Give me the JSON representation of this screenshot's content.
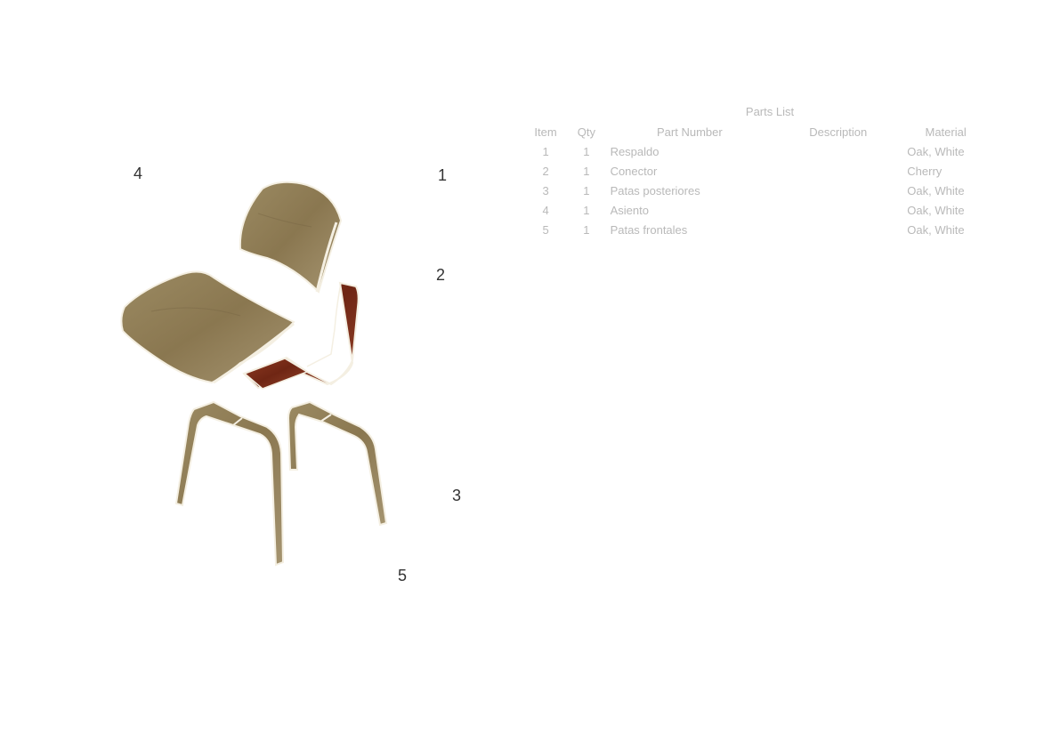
{
  "callouts": [
    {
      "id": "c1",
      "label": "1"
    },
    {
      "id": "c2",
      "label": "2"
    },
    {
      "id": "c3",
      "label": "3"
    },
    {
      "id": "c4",
      "label": "4"
    },
    {
      "id": "c5",
      "label": "5"
    }
  ],
  "parts_list": {
    "title": "Parts List",
    "headers": {
      "item": "Item",
      "qty": "Qty",
      "part_number": "Part Number",
      "description": "Description",
      "material": "Material"
    },
    "rows": [
      {
        "item": "1",
        "qty": "1",
        "part_number": "Respaldo",
        "description": "",
        "material": "Oak, White"
      },
      {
        "item": "2",
        "qty": "1",
        "part_number": "Conector",
        "description": "",
        "material": "Cherry"
      },
      {
        "item": "3",
        "qty": "1",
        "part_number": "Patas posteriores",
        "description": "",
        "material": "Oak, White"
      },
      {
        "item": "4",
        "qty": "1",
        "part_number": "Asiento",
        "description": "",
        "material": "Oak, White"
      },
      {
        "item": "5",
        "qty": "1",
        "part_number": "Patas frontales",
        "description": "",
        "material": "Oak, White"
      }
    ]
  },
  "colors": {
    "oak": "#8c7a56",
    "oak_light": "#a8966e",
    "cherry": "#7a2e1a",
    "cherry_light": "#9a4a2e",
    "edge": "#f4efe2",
    "table_text": "#b9b9b9",
    "callout_text": "#333333"
  }
}
